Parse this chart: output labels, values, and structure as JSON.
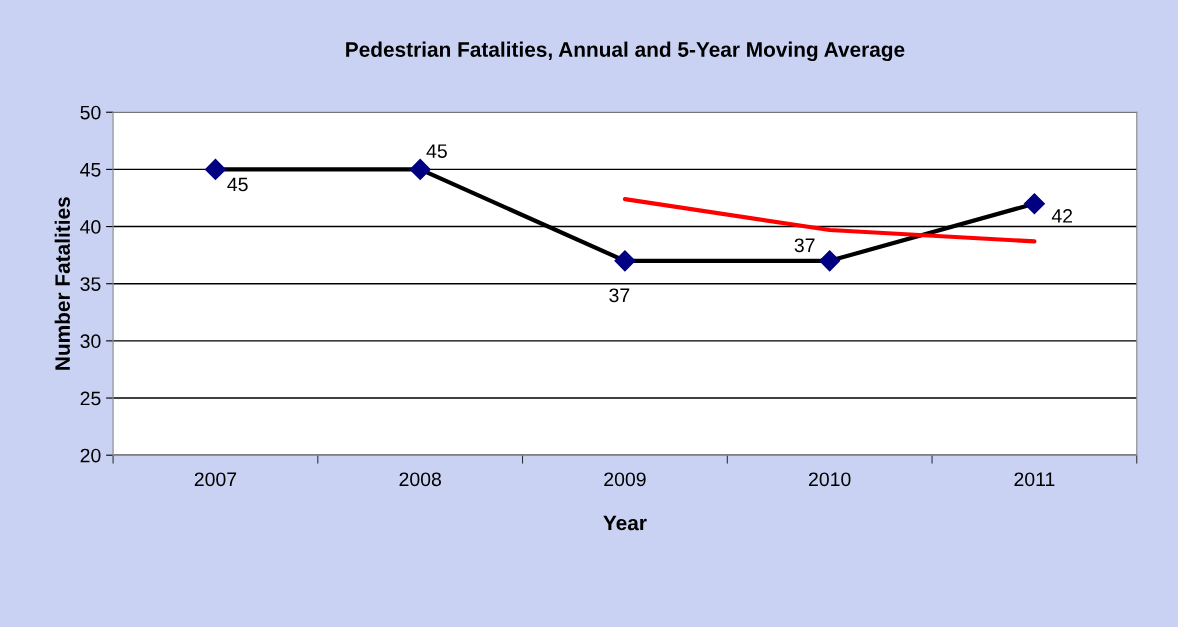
{
  "chart_data": {
    "type": "line",
    "title": "Pedestrian Fatalities, Annual and 5-Year Moving Average",
    "xlabel": "Year",
    "ylabel": "Number Fatalities",
    "categories": [
      "2007",
      "2008",
      "2009",
      "2010",
      "2011"
    ],
    "series": [
      {
        "color": "#000000",
        "marker": "diamond",
        "values": [
          45,
          45,
          37,
          37,
          42
        ],
        "value_labels": [
          "45",
          "45",
          "37",
          "37",
          "42"
        ]
      },
      {
        "color": "#ff0000",
        "marker": "none",
        "values": [
          null,
          null,
          42.4,
          39.7,
          38.7
        ]
      }
    ],
    "ylim": [
      20,
      50
    ],
    "yticks": [
      20,
      25,
      30,
      35,
      40,
      45,
      50
    ],
    "grid": "y",
    "legend": false
  }
}
